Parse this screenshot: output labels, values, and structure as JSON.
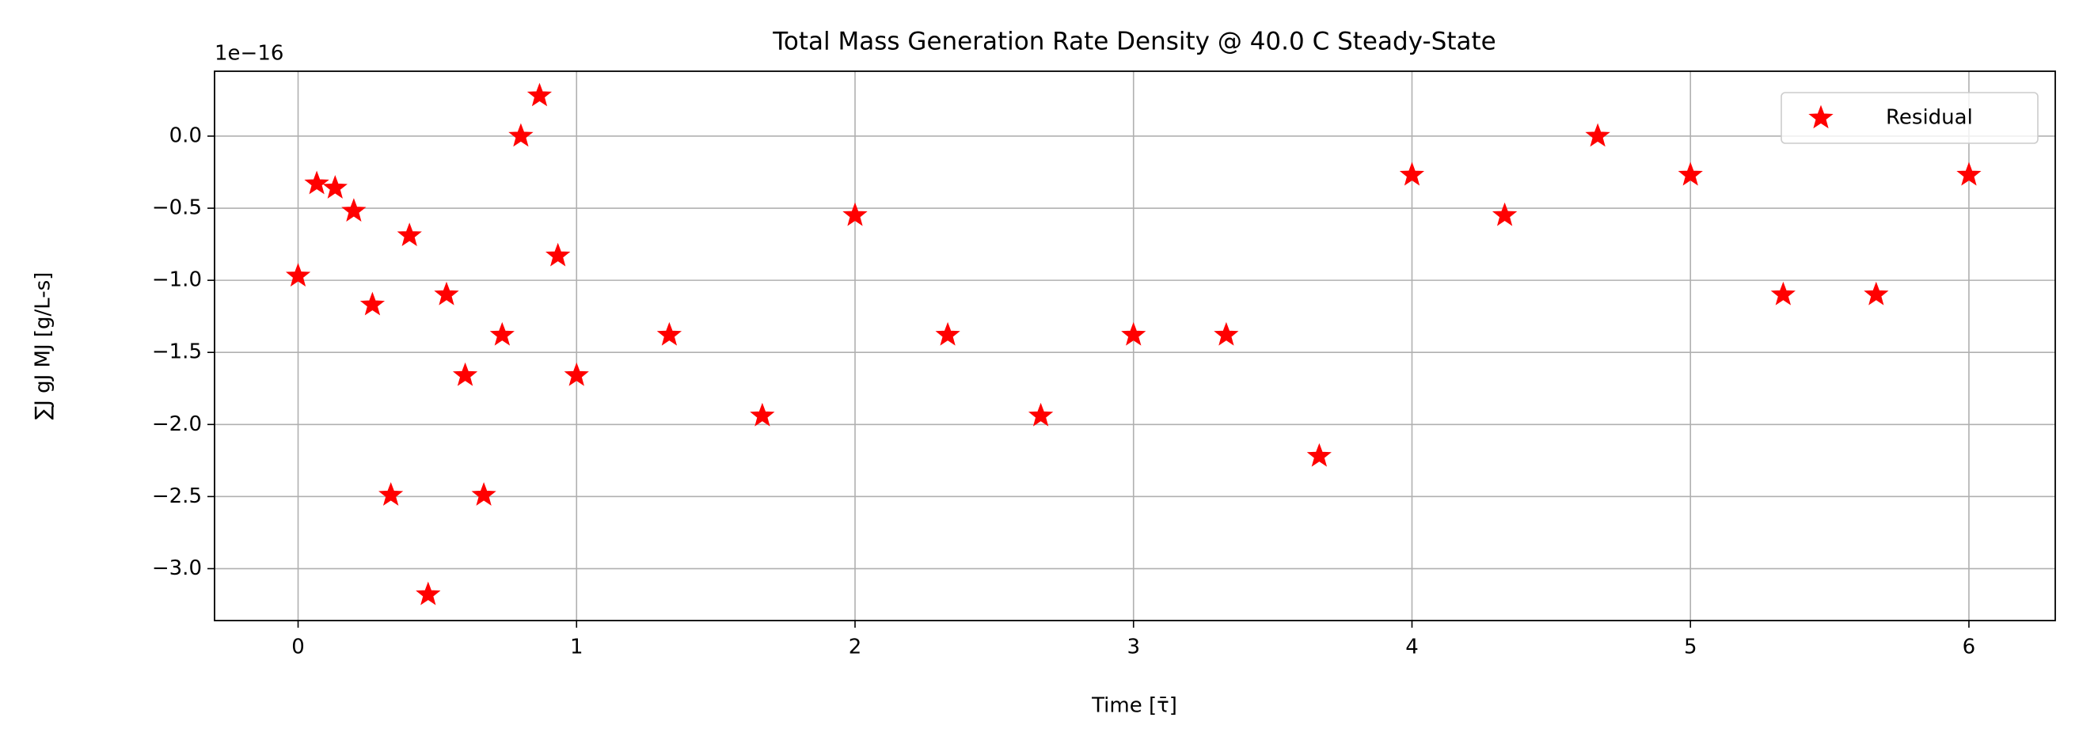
{
  "chart_data": {
    "type": "scatter",
    "title": "Total Mass Generation Rate Density @ 40.0 C Steady-State",
    "x_label": "Time [τ̄]",
    "y_label": "∑J gJ MJ [g/L-s]",
    "y_offset_text": "1e−16",
    "series": [
      {
        "name": "Residual",
        "color": "#ff0000",
        "marker": "star",
        "x": [
          0,
          0.067,
          0.133,
          0.2,
          0.267,
          0.333,
          0.4,
          0.467,
          0.533,
          0.6,
          0.667,
          0.733,
          0.8,
          0.867,
          0.933,
          1.0,
          1.333,
          1.667,
          2.0,
          2.333,
          2.667,
          3.0,
          3.333,
          3.667,
          4.0,
          4.333,
          4.667,
          5.0,
          5.333,
          5.667,
          6.0
        ],
        "values": [
          -0.97,
          -0.33,
          -0.36,
          -0.52,
          -1.17,
          -2.49,
          -0.69,
          -3.18,
          -1.1,
          -1.66,
          -2.49,
          -1.38,
          0.0,
          0.28,
          -0.83,
          -1.66,
          -1.38,
          -1.94,
          -0.55,
          -1.38,
          -1.94,
          -1.38,
          -1.38,
          -2.22,
          -0.27,
          -0.55,
          0.0,
          -0.27,
          -1.1,
          -1.1,
          -0.27
        ]
      }
    ],
    "xlim": [
      -0.3,
      6.31
    ],
    "ylim": [
      -3.36,
      0.45
    ],
    "xticks": [
      0,
      1,
      2,
      3,
      4,
      5,
      6
    ],
    "yticks": [
      {
        "value": -3,
        "label": "−3.0"
      },
      {
        "value": -2.5,
        "label": "−2.5"
      },
      {
        "value": -2,
        "label": "−2.0"
      },
      {
        "value": -1.5,
        "label": "−1.5"
      },
      {
        "value": -1,
        "label": "−1.0"
      },
      {
        "value": -0.5,
        "label": "−0.5"
      },
      {
        "value": 0,
        "label": "0.0"
      }
    ],
    "grid": true,
    "legend": "upper right"
  }
}
